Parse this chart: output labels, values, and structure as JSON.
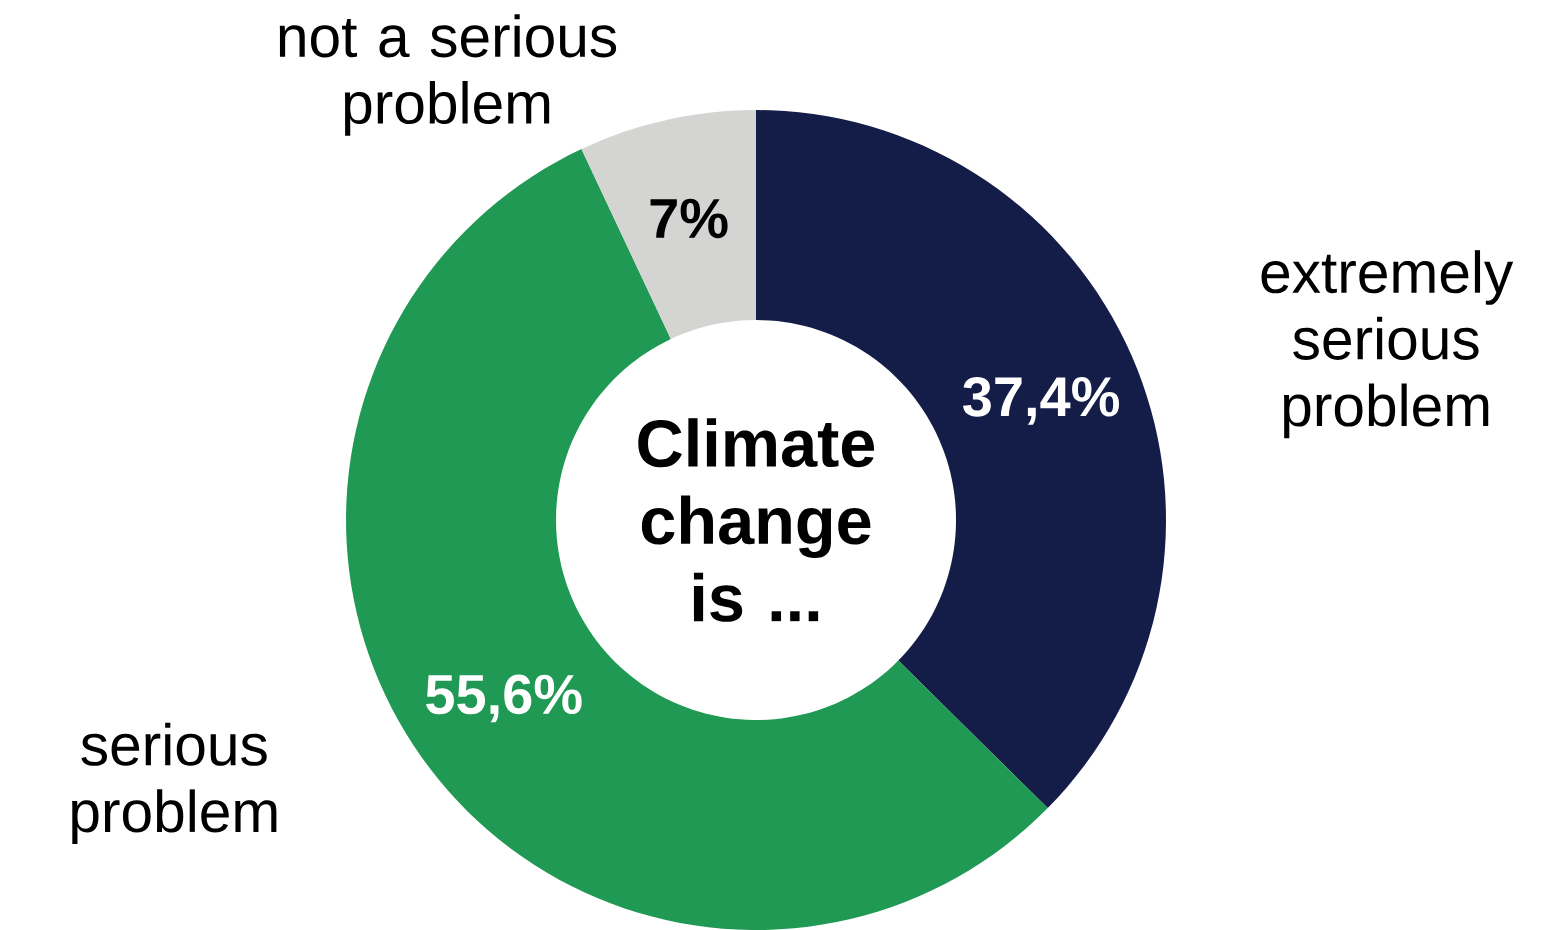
{
  "chart_data": {
    "type": "donut",
    "title": "Climate change is ...",
    "categories": [
      "extremely serious problem",
      "serious problem",
      "not a serious problem"
    ],
    "values": [
      37.4,
      55.6,
      7
    ],
    "colors": [
      "#141c48",
      "#1f9954",
      "#d4d5d3"
    ],
    "value_labels": [
      "37,4%",
      "55,6%",
      "7%"
    ]
  }
}
